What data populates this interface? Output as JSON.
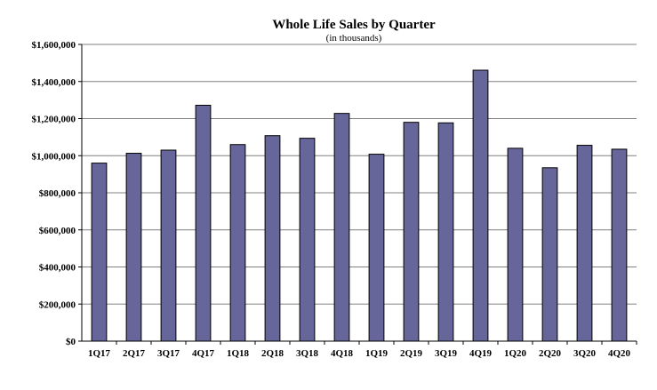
{
  "colors": {
    "bar": "#66669a",
    "grid": "#808080",
    "background": "#ffffff"
  },
  "chart_data": {
    "type": "bar",
    "title": "Whole Life Sales by Quarter",
    "subtitle": "(in thousands)",
    "xlabel": "",
    "ylabel": "",
    "grid": true,
    "legend": "none",
    "ylim": [
      0,
      1600000
    ],
    "yticks": [
      0,
      200000,
      400000,
      600000,
      800000,
      1000000,
      1200000,
      1400000,
      1600000
    ],
    "ytick_labels": [
      "$0",
      "$200,000",
      "$400,000",
      "$600,000",
      "$800,000",
      "$1,000,000",
      "$1,200,000",
      "$1,400,000",
      "$1,600,000"
    ],
    "categories": [
      "1Q17",
      "2Q17",
      "3Q17",
      "4Q17",
      "1Q18",
      "2Q18",
      "3Q18",
      "4Q18",
      "1Q19",
      "2Q19",
      "3Q19",
      "4Q19",
      "1Q20",
      "2Q20",
      "3Q20",
      "4Q20"
    ],
    "values": [
      960000,
      1013000,
      1030000,
      1272000,
      1060000,
      1108000,
      1094000,
      1228000,
      1008000,
      1180000,
      1177000,
      1461000,
      1040000,
      935000,
      1056000,
      1035000
    ]
  }
}
